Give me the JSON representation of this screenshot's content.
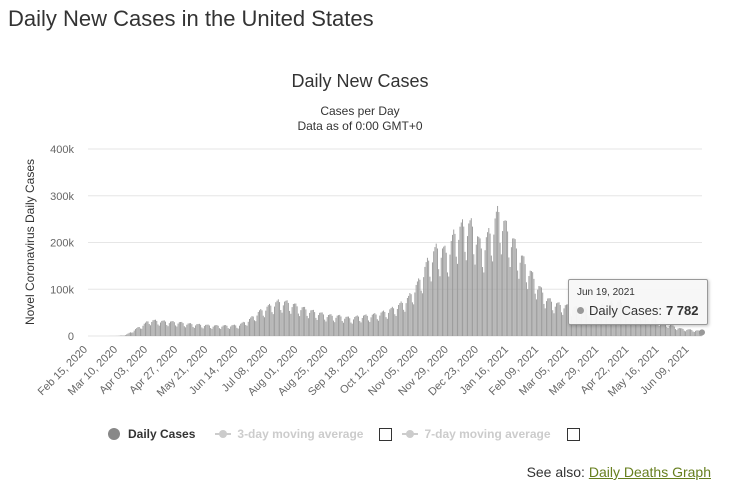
{
  "page": {
    "title": "Daily New Cases in the United States",
    "see_also_prefix": "See also:",
    "see_also_link": "Daily Deaths Graph"
  },
  "colors": {
    "bar": "#999999",
    "grid": "#e6e6e6",
    "text": "#333333",
    "tick": "#666666",
    "link": "#677f1e"
  },
  "chart_data": {
    "type": "bar",
    "title": "Daily New Cases",
    "subtitle_lines": [
      "Cases per Day",
      "Data as of 0:00 GMT+0"
    ],
    "ylabel": "Novel Coronavirus Daily Cases",
    "ylim": [
      0,
      400000
    ],
    "y_ticks": [
      0,
      100000,
      200000,
      300000,
      400000
    ],
    "y_tick_labels": [
      "0",
      "100k",
      "200k",
      "300k",
      "400k"
    ],
    "x_start": "2020-02-15",
    "x_end": "2021-06-19",
    "x_ticks": [
      "2020-02-15",
      "2020-03-10",
      "2020-04-03",
      "2020-04-27",
      "2020-05-21",
      "2020-06-14",
      "2020-07-08",
      "2020-08-01",
      "2020-08-25",
      "2020-09-18",
      "2020-10-12",
      "2020-11-05",
      "2020-11-29",
      "2020-12-23",
      "2021-01-16",
      "2021-02-09",
      "2021-03-05",
      "2021-03-29",
      "2021-04-22",
      "2021-05-16",
      "2021-06-09"
    ],
    "x_tick_labels": [
      "Feb 15, 2020",
      "Mar 10, 2020",
      "Apr 03, 2020",
      "Apr 27, 2020",
      "May 21, 2020",
      "Jun 14, 2020",
      "Jul 08, 2020",
      "Aug 01, 2020",
      "Aug 25, 2020",
      "Sep 18, 2020",
      "Oct 12, 2020",
      "Nov 05, 2020",
      "Nov 29, 2020",
      "Dec 23, 2020",
      "Jan 16, 2021",
      "Feb 09, 2021",
      "Mar 05, 2021",
      "Mar 29, 2021",
      "Apr 22, 2021",
      "May 16, 2021",
      "Jun 09, 2021"
    ],
    "series": [
      {
        "name": "Daily Cases",
        "points": [
          [
            "2020-02-15",
            0
          ],
          [
            "2020-03-01",
            20
          ],
          [
            "2020-03-10",
            300
          ],
          [
            "2020-03-16",
            1800
          ],
          [
            "2020-03-21",
            9000
          ],
          [
            "2020-03-26",
            17000
          ],
          [
            "2020-04-01",
            26000
          ],
          [
            "2020-04-04",
            32000
          ],
          [
            "2020-04-10",
            31000
          ],
          [
            "2020-04-20",
            29000
          ],
          [
            "2020-04-27",
            28000
          ],
          [
            "2020-05-05",
            25000
          ],
          [
            "2020-05-15",
            23000
          ],
          [
            "2020-05-25",
            21000
          ],
          [
            "2020-06-05",
            21000
          ],
          [
            "2020-06-14",
            22000
          ],
          [
            "2020-06-22",
            32000
          ],
          [
            "2020-07-01",
            50000
          ],
          [
            "2020-07-08",
            60000
          ],
          [
            "2020-07-16",
            70000
          ],
          [
            "2020-07-24",
            68000
          ],
          [
            "2020-08-01",
            60000
          ],
          [
            "2020-08-10",
            52000
          ],
          [
            "2020-08-20",
            45000
          ],
          [
            "2020-08-25",
            42000
          ],
          [
            "2020-09-05",
            40000
          ],
          [
            "2020-09-12",
            36000
          ],
          [
            "2020-09-18",
            40000
          ],
          [
            "2020-09-28",
            42000
          ],
          [
            "2020-10-05",
            46000
          ],
          [
            "2020-10-12",
            52000
          ],
          [
            "2020-10-20",
            62000
          ],
          [
            "2020-10-28",
            78000
          ],
          [
            "2020-11-05",
            110000
          ],
          [
            "2020-11-13",
            155000
          ],
          [
            "2020-11-20",
            180000
          ],
          [
            "2020-11-28",
            170000
          ],
          [
            "2020-12-04",
            210000
          ],
          [
            "2020-12-11",
            225000
          ],
          [
            "2020-12-18",
            225000
          ],
          [
            "2020-12-25",
            180000
          ],
          [
            "2021-01-02",
            215000
          ],
          [
            "2021-01-08",
            255000
          ],
          [
            "2021-01-12",
            230000
          ],
          [
            "2021-01-18",
            200000
          ],
          [
            "2021-01-25",
            165000
          ],
          [
            "2021-02-01",
            135000
          ],
          [
            "2021-02-09",
            100000
          ],
          [
            "2021-02-16",
            75000
          ],
          [
            "2021-02-22",
            66000
          ],
          [
            "2021-03-05",
            60000
          ],
          [
            "2021-03-15",
            55000
          ],
          [
            "2021-03-29",
            60000
          ],
          [
            "2021-04-08",
            68000
          ],
          [
            "2021-04-15",
            70000
          ],
          [
            "2021-04-22",
            60000
          ],
          [
            "2021-05-01",
            48000
          ],
          [
            "2021-05-10",
            36000
          ],
          [
            "2021-05-16",
            30000
          ],
          [
            "2021-05-25",
            22000
          ],
          [
            "2021-06-02",
            15000
          ],
          [
            "2021-06-09",
            13000
          ],
          [
            "2021-06-16",
            11000
          ],
          [
            "2021-06-19",
            7782
          ]
        ]
      }
    ],
    "legend": {
      "placement": "bottom",
      "items": [
        {
          "label": "Daily Cases",
          "active": true
        },
        {
          "label": "3-day moving average",
          "active": false
        },
        {
          "label": "7-day moving average",
          "active": false
        }
      ]
    },
    "grid": true,
    "tooltip": {
      "date": "Jun 19, 2021",
      "series_label": "Daily Cases:",
      "value": "7 782"
    }
  }
}
